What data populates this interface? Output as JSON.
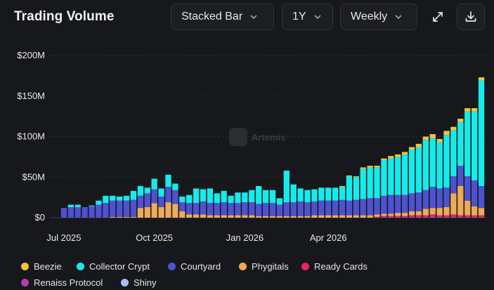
{
  "header": {
    "title": "Trading Volume",
    "chart_type_select": "Stacked Bar",
    "range_select": "1Y",
    "interval_select": "Weekly"
  },
  "watermark": {
    "text": "Artemis"
  },
  "legend": [
    {
      "label": "Beezie",
      "color": "#f3c43a"
    },
    {
      "label": "Collector Crypt",
      "color": "#14ecec"
    },
    {
      "label": "Courtyard",
      "color": "#4e52cf"
    },
    {
      "label": "Phygitals",
      "color": "#edab58"
    },
    {
      "label": "Ready Cards",
      "color": "#e7265f"
    },
    {
      "label": "Renaiss Protocol",
      "color": "#b63db6"
    },
    {
      "label": "Shiny",
      "color": "#a8bcf2"
    }
  ],
  "chart_data": {
    "type": "bar",
    "stacked": true,
    "ylim": [
      0,
      200
    ],
    "yticks": [
      "$0",
      "$50M",
      "$100M",
      "$150M",
      "$200M"
    ],
    "xtick_labels": [
      "Jul 2025",
      "Oct 2025",
      "Jan 2026",
      "Apr 2026"
    ],
    "grid": true,
    "legend_position": "bottom",
    "unit": "$M",
    "series": [
      {
        "name": "Renaiss Protocol",
        "color": "#b63db6",
        "values": [
          0,
          0,
          0,
          0,
          0,
          0,
          0,
          0,
          0,
          0,
          0,
          0,
          0,
          0,
          0,
          0,
          0,
          0,
          0,
          0,
          0,
          0,
          0,
          0,
          0,
          0,
          0,
          0,
          0,
          0,
          0,
          0,
          0,
          0,
          0,
          0,
          0,
          0,
          0,
          0,
          0,
          0,
          0,
          0,
          0,
          0,
          1,
          1,
          1,
          1,
          1,
          1,
          1,
          2,
          1,
          1,
          1,
          1,
          1,
          1,
          1
        ]
      },
      {
        "name": "Ready Cards",
        "color": "#e7265f",
        "values": [
          0,
          0,
          0,
          0,
          0,
          0,
          0,
          0,
          0,
          0,
          0,
          0,
          0,
          0,
          0,
          0,
          0,
          0,
          0,
          0,
          0,
          0,
          0,
          0,
          0,
          0,
          0,
          0,
          0,
          0,
          0,
          0,
          0,
          0,
          0,
          0,
          0,
          0,
          0,
          0,
          0,
          0,
          0,
          0,
          0,
          1,
          1,
          1,
          1,
          1,
          2,
          2,
          2,
          2,
          2,
          2,
          3,
          2,
          2,
          2,
          2
        ]
      },
      {
        "name": "Phygitals",
        "color": "#edab58",
        "values": [
          0,
          0,
          0,
          0,
          0,
          0,
          0,
          1,
          1,
          1,
          1,
          12,
          13,
          18,
          13,
          19,
          17,
          8,
          4,
          4,
          4,
          3,
          3,
          3,
          3,
          3,
          3,
          3,
          2,
          2,
          2,
          2,
          2,
          2,
          2,
          2,
          3,
          3,
          3,
          3,
          3,
          3,
          3,
          3,
          3,
          3,
          3,
          3,
          4,
          4,
          5,
          5,
          8,
          8,
          9,
          10,
          26,
          36,
          18,
          11,
          9
        ]
      },
      {
        "name": "Courtyard",
        "color": "#4e52cf",
        "values": [
          12,
          13,
          13,
          13,
          14,
          16,
          18,
          20,
          20,
          20,
          21,
          15,
          17,
          17,
          13,
          19,
          17,
          11,
          14,
          14,
          16,
          15,
          15,
          16,
          15,
          15,
          16,
          16,
          15,
          16,
          16,
          14,
          17,
          17,
          18,
          17,
          17,
          18,
          18,
          18,
          19,
          18,
          19,
          20,
          21,
          20,
          22,
          23,
          22,
          22,
          22,
          23,
          23,
          26,
          24,
          24,
          21,
          25,
          30,
          32,
          27
        ]
      },
      {
        "name": "Collector Crypt",
        "color": "#14ecec",
        "values": [
          0,
          3,
          3,
          0,
          1,
          5,
          9,
          6,
          5,
          6,
          11,
          12,
          7,
          13,
          10,
          15,
          8,
          7,
          10,
          18,
          15,
          18,
          12,
          14,
          9,
          13,
          12,
          15,
          22,
          16,
          16,
          8,
          39,
          22,
          16,
          15,
          15,
          16,
          16,
          16,
          16,
          30,
          28,
          37,
          38,
          38,
          44,
          45,
          47,
          50,
          54,
          56,
          62,
          60,
          57,
          65,
          57,
          54,
          80,
          85,
          130
        ]
      },
      {
        "name": "Beezie",
        "color": "#f3c43a",
        "values": [
          0,
          0,
          0,
          0,
          0,
          0,
          0,
          0,
          0,
          0,
          0,
          0,
          0,
          0,
          0,
          0,
          0,
          0,
          0,
          0,
          0,
          0,
          0,
          0,
          0,
          0,
          0,
          0,
          0,
          0,
          0,
          0,
          0,
          0,
          0,
          0,
          0,
          0,
          0,
          0,
          1,
          1,
          1,
          2,
          2,
          2,
          2,
          3,
          3,
          3,
          3,
          4,
          4,
          5,
          4,
          5,
          4,
          4,
          4,
          4,
          4
        ]
      },
      {
        "name": "Shiny",
        "color": "#a8bcf2",
        "values": [
          0,
          0,
          0,
          0,
          0,
          0,
          0,
          0,
          0,
          0,
          0,
          0,
          0,
          0,
          0,
          0,
          0,
          0,
          0,
          0,
          0,
          0,
          0,
          0,
          0,
          0,
          0,
          0,
          0,
          0,
          0,
          0,
          0,
          0,
          0,
          0,
          0,
          0,
          0,
          0,
          0,
          0,
          0,
          0,
          0,
          0,
          0,
          0,
          0,
          0,
          0,
          0,
          0,
          0,
          0,
          0,
          0,
          0,
          0,
          0,
          0
        ]
      }
    ]
  }
}
